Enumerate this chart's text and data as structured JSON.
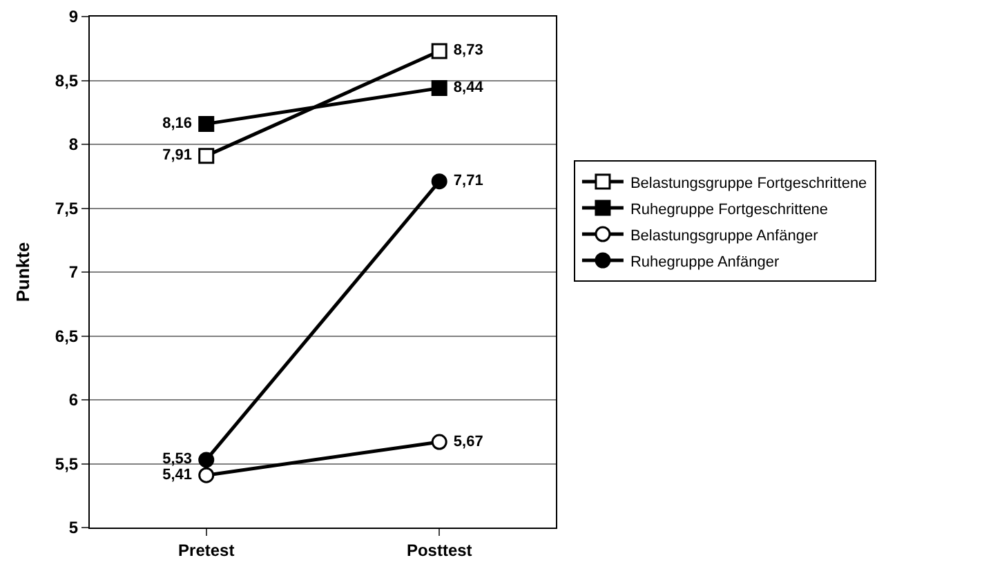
{
  "chart_data": {
    "type": "line",
    "ylabel": "Punkte",
    "categories": [
      "Pretest",
      "Posttest"
    ],
    "ylim": [
      5,
      9
    ],
    "yticks": [
      5,
      {
        "value": 5.5,
        "label": "5,5"
      },
      6,
      {
        "value": 6.5,
        "label": "6,5"
      },
      7,
      {
        "value": 7.5,
        "label": "7,5"
      },
      8,
      {
        "value": 8.5,
        "label": "8,5"
      },
      9
    ],
    "grid": "y",
    "legend": "right",
    "line_style": "solid",
    "series": [
      {
        "name": "Belastungsgruppe Fortgeschrittene",
        "color": "#000000",
        "marker": "square-open",
        "values": [
          7.91,
          8.73
        ],
        "value_labels": [
          "7,91",
          "8,73"
        ]
      },
      {
        "name": "Ruhegruppe Fortgeschrittene",
        "color": "#000000",
        "marker": "square",
        "values": [
          8.16,
          8.44
        ],
        "value_labels": [
          "8,16",
          "8,44"
        ]
      },
      {
        "name": "Belastungsgruppe Anfänger",
        "color": "#000000",
        "marker": "circle-open",
        "values": [
          5.41,
          5.67
        ],
        "value_labels": [
          "5,41",
          "5,67"
        ]
      },
      {
        "name": "Ruhegruppe Anfänger",
        "color": "#000000",
        "marker": "circle",
        "values": [
          5.53,
          7.71
        ],
        "value_labels": [
          "5,53",
          "7,71"
        ]
      }
    ]
  }
}
